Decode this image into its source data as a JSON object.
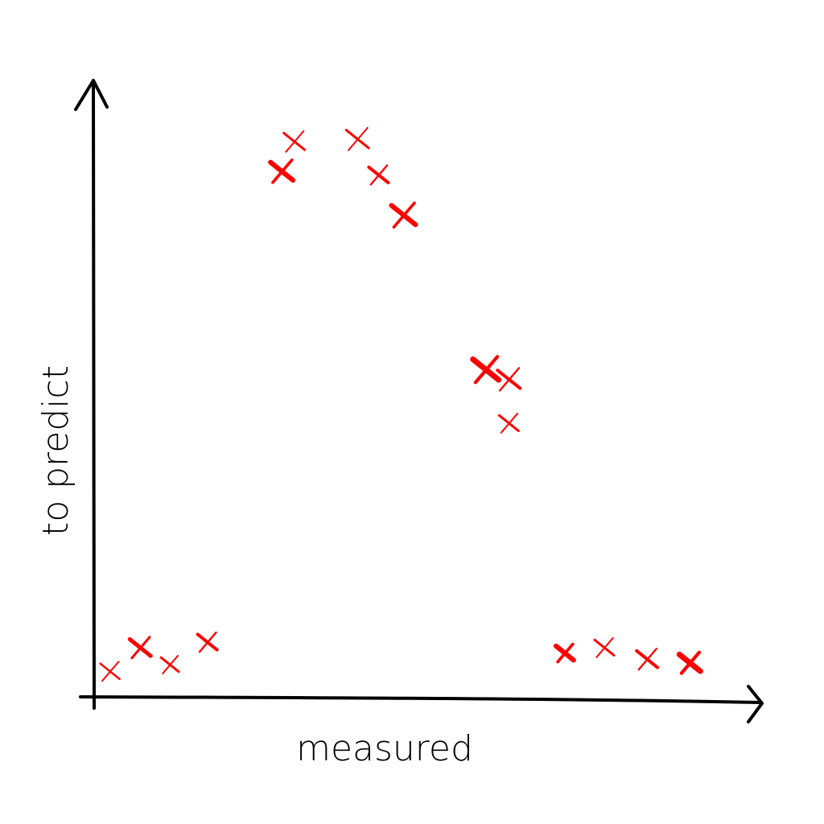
{
  "chart_data": {
    "type": "scatter",
    "xlabel": "measured",
    "ylabel": "to predict",
    "marker": "x",
    "colors": {
      "points": "#ff0000",
      "axes": "#000000",
      "background": "#ffffff"
    },
    "grid": false,
    "legend": "none",
    "xlim": [
      0,
      100
    ],
    "ylim": [
      0,
      100
    ],
    "points": [
      {
        "x": 2.4,
        "y": 4.2
      },
      {
        "x": 7.0,
        "y": 8.1
      },
      {
        "x": 11.5,
        "y": 5.3
      },
      {
        "x": 17.2,
        "y": 9.0
      },
      {
        "x": 28.5,
        "y": 86.4
      },
      {
        "x": 30.4,
        "y": 91.3
      },
      {
        "x": 40.0,
        "y": 91.7
      },
      {
        "x": 43.2,
        "y": 85.8
      },
      {
        "x": 47.0,
        "y": 79.2
      },
      {
        "x": 59.5,
        "y": 53.8
      },
      {
        "x": 63.0,
        "y": 52.2
      },
      {
        "x": 63.0,
        "y": 45.0
      },
      {
        "x": 71.5,
        "y": 7.2
      },
      {
        "x": 77.5,
        "y": 8.1
      },
      {
        "x": 84.0,
        "y": 6.2
      },
      {
        "x": 90.5,
        "y": 5.6
      }
    ]
  }
}
